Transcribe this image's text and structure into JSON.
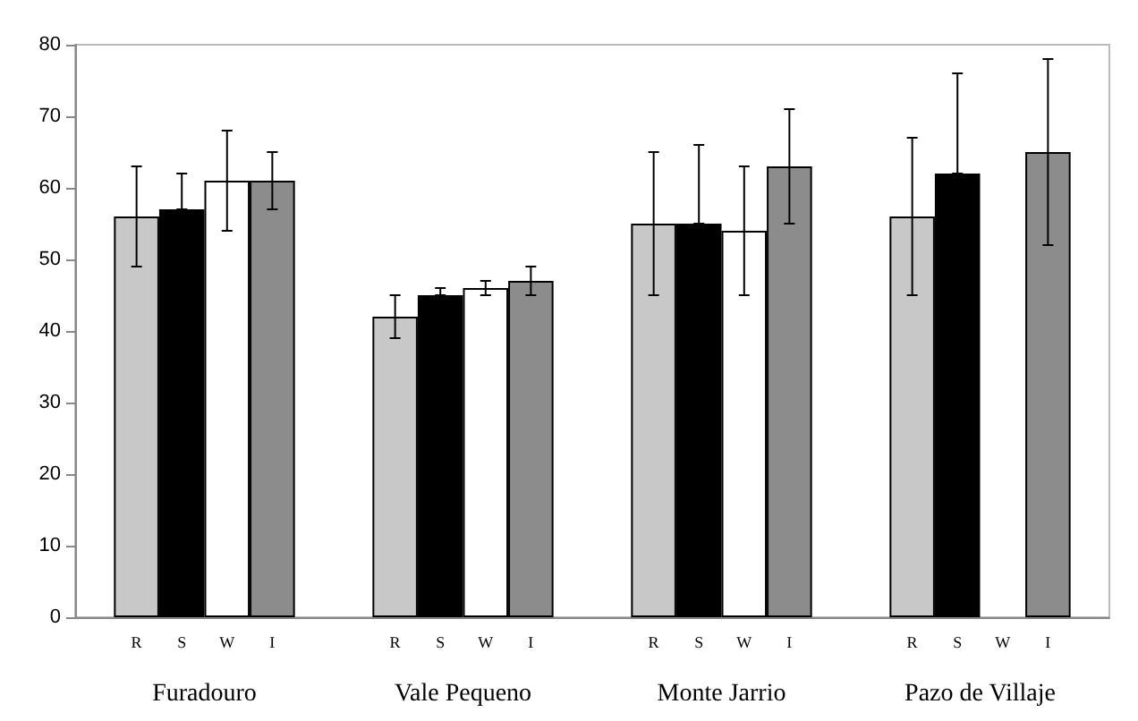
{
  "chart_data": {
    "type": "bar",
    "categories": [
      "Furadouro",
      "Vale Pequeno",
      "Monte Jarrio",
      "Pazo de Villaje"
    ],
    "series": [
      {
        "name": "R",
        "color": "#c8c8c8",
        "values": [
          56,
          42,
          55,
          56
        ],
        "errors": [
          [
            49,
            63
          ],
          [
            39,
            45
          ],
          [
            45,
            65
          ],
          [
            45,
            67
          ]
        ]
      },
      {
        "name": "S",
        "color": "#000000",
        "values": [
          57,
          45,
          55,
          62
        ],
        "errors": [
          [
            57,
            62
          ],
          [
            45,
            46
          ],
          [
            55,
            66
          ],
          [
            62,
            76
          ]
        ]
      },
      {
        "name": "W",
        "color": "#ffffff",
        "values": [
          61,
          46,
          54,
          null
        ],
        "errors": [
          [
            54,
            68
          ],
          [
            45,
            47
          ],
          [
            45,
            63
          ],
          null
        ]
      },
      {
        "name": "I",
        "color": "#8c8c8c",
        "values": [
          61,
          47,
          63,
          65
        ],
        "errors": [
          [
            57,
            65
          ],
          [
            45,
            49
          ],
          [
            55,
            71
          ],
          [
            52,
            78
          ]
        ]
      }
    ],
    "ylim": [
      0,
      80
    ],
    "yticks": [
      0,
      10,
      20,
      30,
      40,
      50,
      60,
      70,
      80
    ],
    "grid": false,
    "legend": false
  }
}
